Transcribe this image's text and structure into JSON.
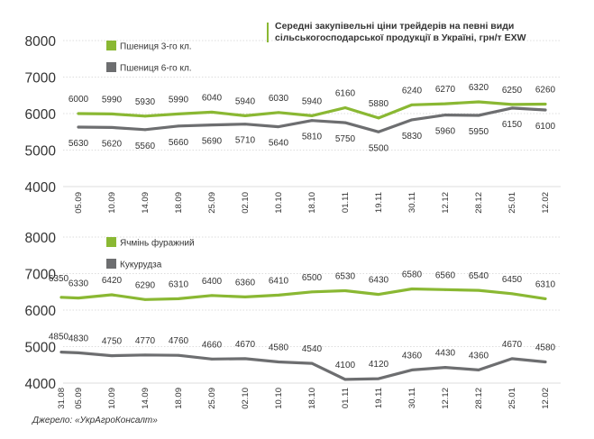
{
  "title_lines": [
    "Середні закупівельні ціни трейдерів на певні види",
    "сільськогосподарської продукції в Україні, грн/т EXW"
  ],
  "source": "Джерело: «УкрАгроКонсалт»",
  "colors": {
    "green": "#8ab833",
    "gray": "#6d6e70",
    "grid": "#bbbbbb",
    "text": "#333333"
  },
  "chart_data": [
    {
      "type": "line",
      "categories": [
        "05.09",
        "10.09",
        "14.09",
        "18.09",
        "25.09",
        "02.10",
        "10.10",
        "18.10",
        "01.11",
        "19.11",
        "30.11",
        "12.12",
        "28.12",
        "25.01",
        "12.02"
      ],
      "category_labels": [
        "05.09",
        "10.09",
        "14.09",
        "18.09",
        "25.09",
        "02.10",
        "10.10",
        "18.10",
        "01.11",
        "19.11",
        "30.11",
        "12.12",
        "28.12",
        "25.01",
        "12.02"
      ],
      "ylim": [
        4000,
        8000
      ],
      "yticks": [
        4000,
        5000,
        6000,
        7000,
        8000
      ],
      "legend": "top-left",
      "series": [
        {
          "name": "Пшениця 3-го кл.",
          "color": "#8ab833",
          "label_pos": "above",
          "values": [
            6000,
            5990,
            5930,
            5990,
            6040,
            5940,
            6030,
            5940,
            6160,
            5880,
            6240,
            6270,
            6320,
            6250,
            6260
          ]
        },
        {
          "name": "Пшениця 6-го кл.",
          "color": "#6d6e70",
          "label_pos": "below",
          "values": [
            5630,
            5620,
            5560,
            5660,
            5690,
            5710,
            5640,
            5810,
            5750,
            5500,
            5830,
            5960,
            5950,
            6150,
            6100
          ]
        }
      ]
    },
    {
      "type": "line",
      "categories": [
        "31.08",
        "05.09",
        "10.09",
        "14.09",
        "18.09",
        "25.09",
        "02.10",
        "10.10",
        "18.10",
        "01.11",
        "19.11",
        "30.11",
        "12.12",
        "28.12",
        "25.01",
        "12.02"
      ],
      "category_labels": [
        "31.08",
        "05.09",
        "10.09",
        "14.09",
        "18.09",
        "25.09",
        "02.10",
        "10.10",
        "18.10",
        "01.11",
        "19.11",
        "30.11",
        "12.12",
        "28.12",
        "25.01",
        "12.02"
      ],
      "ylim": [
        4000,
        8000
      ],
      "yticks": [
        4000,
        5000,
        6000,
        7000,
        8000
      ],
      "legend": "top-left",
      "series": [
        {
          "name": "Ячмінь фуражний",
          "color": "#8ab833",
          "label_pos": "above",
          "values": [
            6350,
            6330,
            6420,
            6290,
            6310,
            6400,
            6360,
            6410,
            6500,
            6530,
            6430,
            6580,
            6560,
            6540,
            6450,
            6310
          ]
        },
        {
          "name": "Кукурудза",
          "color": "#6d6e70",
          "label_pos": "above",
          "values": [
            4850,
            4830,
            4750,
            4770,
            4760,
            4660,
            4670,
            4580,
            4540,
            4100,
            4120,
            4360,
            4430,
            4360,
            4670,
            4580
          ]
        }
      ]
    }
  ]
}
